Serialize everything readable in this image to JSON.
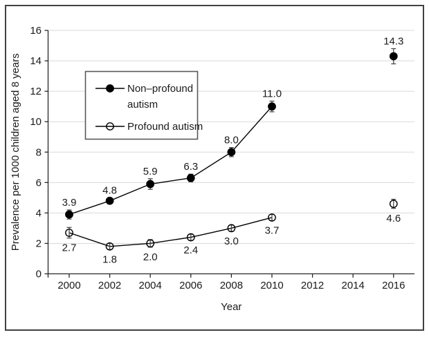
{
  "chart_data": {
    "type": "line",
    "title": "",
    "xlabel": "Year",
    "ylabel": "Prevalence per 1000 children aged 8 years",
    "x": [
      2000,
      2002,
      2004,
      2006,
      2008,
      2010,
      2016
    ],
    "series": [
      {
        "name": "Non–profound autism",
        "marker": "filled-circle",
        "values": [
          3.9,
          4.8,
          5.9,
          6.3,
          8.0,
          11.0,
          14.3
        ],
        "errors": [
          0.3,
          0.2,
          0.35,
          0.25,
          0.3,
          0.35,
          0.5
        ],
        "labels": [
          "3.9",
          "4.8",
          "5.9",
          "6.3",
          "8.0",
          "11.0",
          "14.3"
        ],
        "label_position": "above"
      },
      {
        "name": "Profound autism",
        "marker": "open-circle",
        "values": [
          2.7,
          1.8,
          2.0,
          2.4,
          3.0,
          3.7,
          4.6
        ],
        "errors": [
          0.35,
          0.2,
          0.25,
          0.2,
          0.2,
          0.2,
          0.3
        ],
        "labels": [
          "2.7",
          "1.8",
          "2.0",
          "2.4",
          "3.0",
          "3.7",
          "4.6"
        ],
        "label_position": "below"
      }
    ],
    "line_break_after_x": 2010,
    "x_ticks": [
      "2000",
      "2002",
      "2004",
      "2006",
      "2008",
      "2010",
      "2012",
      "2014",
      "2016"
    ],
    "y_ticks": [
      "0",
      "2",
      "4",
      "6",
      "8",
      "10",
      "12",
      "14",
      "16"
    ],
    "xlim": [
      1999,
      2017
    ],
    "ylim": [
      0,
      16
    ],
    "grid": "horizontal",
    "error_bars": true,
    "legend_position": "upper-left-inside",
    "legend": {
      "items": [
        {
          "lines": [
            "Non–profound",
            "autism"
          ],
          "marker": "filled-circle"
        },
        {
          "lines": [
            "Profound autism"
          ],
          "marker": "open-circle"
        }
      ]
    },
    "colors": {
      "series": "#000000",
      "gridline": "#d9d9d9",
      "axis": "#262626",
      "error_bar": "#404040",
      "text": "#1a1a1a",
      "frame": "#404040",
      "legend_border": "#595959",
      "background": "#ffffff"
    }
  }
}
